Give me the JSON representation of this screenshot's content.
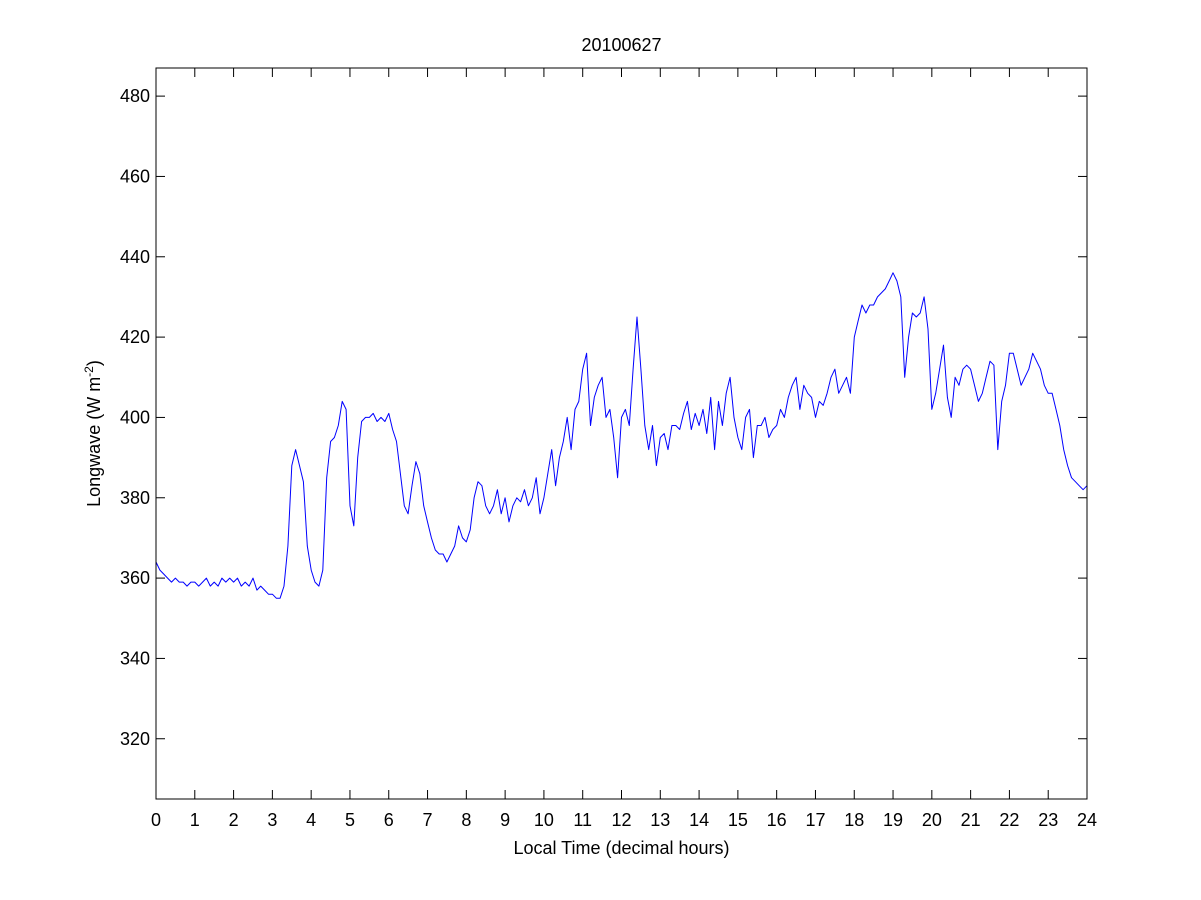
{
  "chart_data": {
    "type": "line",
    "title": "20100627",
    "xlabel": "Local Time (decimal hours)",
    "ylabel": "Longwave (W m",
    "ylabel_superscript": "-2",
    "ylabel_close": ")",
    "xlim": [
      0,
      24
    ],
    "ylim": [
      305,
      487
    ],
    "xticks": [
      0,
      1,
      2,
      3,
      4,
      5,
      6,
      7,
      8,
      9,
      10,
      11,
      12,
      13,
      14,
      15,
      16,
      17,
      18,
      19,
      20,
      21,
      22,
      23,
      24
    ],
    "yticks": [
      320,
      340,
      360,
      380,
      400,
      420,
      440,
      460,
      480
    ],
    "grid": false,
    "line_color": "#0000ff",
    "series": [
      {
        "x": [
          0.0,
          0.1,
          0.2,
          0.3,
          0.4,
          0.5,
          0.6,
          0.7,
          0.8,
          0.9,
          1.0,
          1.1,
          1.2,
          1.3,
          1.4,
          1.5,
          1.6,
          1.7,
          1.8,
          1.9,
          2.0,
          2.1,
          2.2,
          2.3,
          2.4,
          2.5,
          2.6,
          2.7,
          2.8,
          2.9,
          3.0,
          3.1,
          3.2,
          3.3,
          3.4,
          3.5,
          3.6,
          3.7,
          3.8,
          3.9,
          4.0,
          4.1,
          4.2,
          4.3,
          4.4,
          4.5,
          4.6,
          4.7,
          4.8,
          4.9,
          5.0,
          5.1,
          5.2,
          5.3,
          5.4,
          5.5,
          5.6,
          5.7,
          5.8,
          5.9,
          6.0,
          6.1,
          6.2,
          6.3,
          6.4,
          6.5,
          6.6,
          6.7,
          6.8,
          6.9,
          7.0,
          7.1,
          7.2,
          7.3,
          7.4,
          7.5,
          7.6,
          7.7,
          7.8,
          7.9,
          8.0,
          8.1,
          8.2,
          8.3,
          8.4,
          8.5,
          8.6,
          8.7,
          8.8,
          8.9,
          9.0,
          9.1,
          9.2,
          9.3,
          9.4,
          9.5,
          9.6,
          9.7,
          9.8,
          9.9,
          10.0,
          10.1,
          10.2,
          10.3,
          10.4,
          10.5,
          10.6,
          10.7,
          10.8,
          10.9,
          11.0,
          11.1,
          11.2,
          11.3,
          11.4,
          11.5,
          11.6,
          11.7,
          11.8,
          11.9,
          12.0,
          12.1,
          12.2,
          12.3,
          12.4,
          12.5,
          12.6,
          12.7,
          12.8,
          12.9,
          13.0,
          13.1,
          13.2,
          13.3,
          13.4,
          13.5,
          13.6,
          13.7,
          13.8,
          13.9,
          14.0,
          14.1,
          14.2,
          14.3,
          14.4,
          14.5,
          14.6,
          14.7,
          14.8,
          14.9,
          15.0,
          15.1,
          15.2,
          15.3,
          15.4,
          15.5,
          15.6,
          15.7,
          15.8,
          15.9,
          16.0,
          16.1,
          16.2,
          16.3,
          16.4,
          16.5,
          16.6,
          16.7,
          16.8,
          16.9,
          17.0,
          17.1,
          17.2,
          17.3,
          17.4,
          17.5,
          17.6,
          17.7,
          17.8,
          17.9,
          18.0,
          18.1,
          18.2,
          18.3,
          18.4,
          18.5,
          18.6,
          18.7,
          18.8,
          18.9,
          19.0,
          19.1,
          19.2,
          19.3,
          19.4,
          19.5,
          19.6,
          19.7,
          19.8,
          19.9,
          20.0,
          20.1,
          20.2,
          20.3,
          20.4,
          20.5,
          20.6,
          20.7,
          20.8,
          20.9,
          21.0,
          21.1,
          21.2,
          21.3,
          21.4,
          21.5,
          21.6,
          21.7,
          21.8,
          21.9,
          22.0,
          22.1,
          22.2,
          22.3,
          22.4,
          22.5,
          22.6,
          22.7,
          22.8,
          22.9,
          23.0,
          23.1,
          23.2,
          23.3,
          23.4,
          23.5,
          23.6,
          23.7,
          23.8,
          23.9,
          24.0
        ],
        "y": [
          364,
          362,
          361,
          360,
          359,
          360,
          359,
          359,
          358,
          359,
          359,
          358,
          359,
          360,
          358,
          359,
          358,
          360,
          359,
          360,
          359,
          360,
          358,
          359,
          358,
          360,
          357,
          358,
          357,
          356,
          356,
          355,
          355,
          358,
          368,
          388,
          392,
          388,
          384,
          368,
          362,
          359,
          358,
          362,
          385,
          394,
          395,
          398,
          404,
          402,
          378,
          373,
          390,
          399,
          400,
          400,
          401,
          399,
          400,
          399,
          401,
          397,
          394,
          386,
          378,
          376,
          383,
          389,
          386,
          378,
          374,
          370,
          367,
          366,
          366,
          364,
          366,
          368,
          373,
          370,
          369,
          372,
          380,
          384,
          383,
          378,
          376,
          378,
          382,
          376,
          380,
          374,
          378,
          380,
          379,
          382,
          378,
          380,
          385,
          376,
          380,
          386,
          392,
          383,
          390,
          394,
          400,
          392,
          402,
          404,
          412,
          416,
          398,
          405,
          408,
          410,
          400,
          402,
          395,
          385,
          400,
          402,
          398,
          412,
          425,
          412,
          398,
          392,
          398,
          388,
          395,
          396,
          392,
          398,
          398,
          397,
          401,
          404,
          397,
          401,
          398,
          402,
          396,
          405,
          392,
          404,
          398,
          406,
          410,
          400,
          395,
          392,
          400,
          402,
          390,
          398,
          398,
          400,
          395,
          397,
          398,
          402,
          400,
          405,
          408,
          410,
          402,
          408,
          406,
          405,
          400,
          404,
          403,
          406,
          410,
          412,
          406,
          408,
          410,
          406,
          420,
          424,
          428,
          426,
          428,
          428,
          430,
          431,
          432,
          434,
          436,
          434,
          430,
          410,
          420,
          426,
          425,
          426,
          430,
          422,
          402,
          406,
          412,
          418,
          405,
          400,
          410,
          408,
          412,
          413,
          412,
          408,
          404,
          406,
          410,
          414,
          413,
          392,
          404,
          408,
          416,
          416,
          412,
          408,
          410,
          412,
          416,
          414,
          412,
          408,
          406,
          406,
          402,
          398,
          392,
          388,
          385,
          384,
          383,
          382,
          383
        ]
      }
    ]
  }
}
